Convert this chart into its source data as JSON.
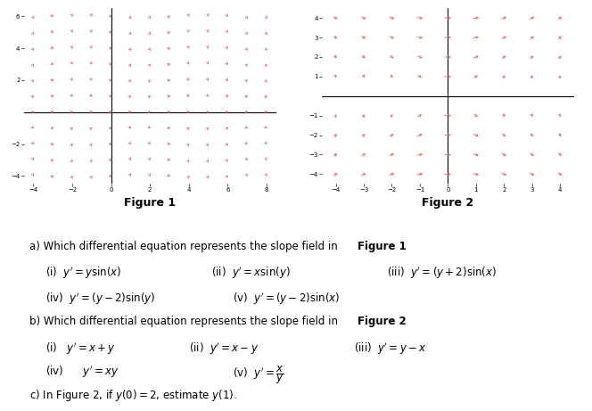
{
  "fig1": {
    "xlim": [
      -4.5,
      8.5
    ],
    "ylim": [
      -4.5,
      6.5
    ],
    "xticks": [
      -4,
      -2,
      0,
      2,
      4,
      6,
      8
    ],
    "yticks": [
      -4,
      -2,
      2,
      4,
      6
    ],
    "label": "Figure 1",
    "equation": "y_sin_x",
    "xs_start": -4.0,
    "xs_end": 8.5,
    "ys_start": -4.0,
    "ys_end": 6.5,
    "step": 1.0
  },
  "fig2": {
    "xlim": [
      -4.5,
      4.5
    ],
    "ylim": [
      -4.5,
      4.5
    ],
    "xticks": [
      -4,
      -3,
      -2,
      -1,
      0,
      1,
      2,
      3,
      4
    ],
    "yticks": [
      -4,
      -3,
      -2,
      -1,
      1,
      2,
      3,
      4
    ],
    "label": "Figure 2",
    "equation": "x_over_y",
    "xs_start": -4.0,
    "xs_end": 4.5,
    "ys_start": -4.0,
    "ys_end": 4.5,
    "step": 1.0
  },
  "arrow_color": "#e06060",
  "arrow_alpha": 0.85,
  "scale": 0.4,
  "label_fontsize": 9,
  "label_fontweight": "bold",
  "tick_fontsize": 5,
  "text_fontsize": 8.5
}
